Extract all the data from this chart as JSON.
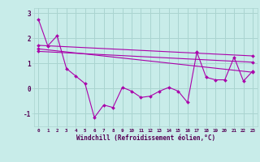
{
  "background_color": "#c8ece9",
  "grid_color": "#aad4d0",
  "line_color": "#aa00aa",
  "marker_color": "#aa00aa",
  "xlabel": "Windchill (Refroidissement éolien,°C)",
  "xlabel_color": "#550055",
  "tick_color": "#550055",
  "xlim": [
    -0.5,
    23.5
  ],
  "ylim": [
    -1.5,
    3.2
  ],
  "yticks": [
    -1,
    0,
    1,
    2,
    3
  ],
  "xticks": [
    0,
    1,
    2,
    3,
    4,
    5,
    6,
    7,
    8,
    9,
    10,
    11,
    12,
    13,
    14,
    15,
    16,
    17,
    18,
    19,
    20,
    21,
    22,
    23
  ],
  "series1": {
    "x": [
      0,
      1,
      2,
      3,
      4,
      5,
      6,
      7,
      8,
      9,
      10,
      11,
      12,
      13,
      14,
      15,
      16,
      17,
      18,
      19,
      20,
      21,
      22,
      23
    ],
    "y": [
      2.75,
      1.7,
      2.1,
      0.8,
      0.5,
      0.2,
      -1.15,
      -0.65,
      -0.75,
      0.05,
      -0.1,
      -0.35,
      -0.3,
      -0.1,
      0.05,
      -0.1,
      -0.55,
      1.45,
      0.45,
      0.35,
      0.35,
      1.25,
      0.3,
      0.7
    ]
  },
  "series2": {
    "x": [
      0,
      23
    ],
    "y": [
      1.72,
      1.3
    ]
  },
  "series3": {
    "x": [
      0,
      23
    ],
    "y": [
      1.58,
      0.65
    ]
  },
  "series4": {
    "x": [
      0,
      23
    ],
    "y": [
      1.48,
      1.05
    ]
  }
}
